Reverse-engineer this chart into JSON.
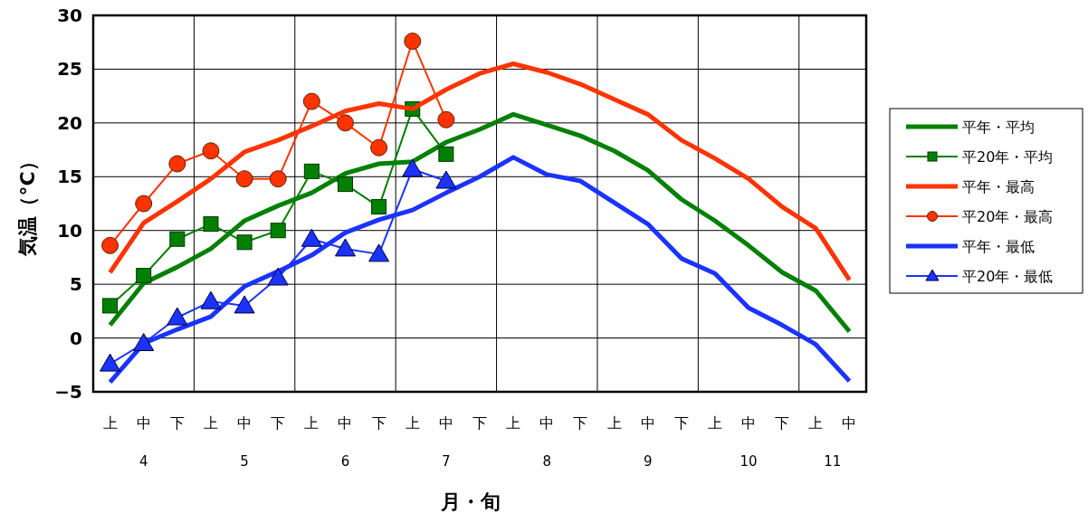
{
  "chart_data": {
    "type": "line",
    "xlabel": "月・旬",
    "ylabel": "気温（°C）",
    "categories": [
      "上",
      "中",
      "下",
      "上",
      "中",
      "下",
      "上",
      "中",
      "下",
      "上",
      "中",
      "下",
      "上",
      "中",
      "下",
      "上",
      "中",
      "下",
      "上",
      "中",
      "下",
      "上",
      "中"
    ],
    "annotations": [
      "4",
      "5",
      "6",
      "7",
      "8",
      "9",
      "10",
      "11"
    ],
    "ylim": [
      -5,
      30
    ],
    "yticks": [
      {
        "value": -5,
        "label": "−5"
      },
      0,
      5,
      10,
      15,
      20,
      25,
      30
    ],
    "grid": true,
    "legend": "right",
    "series": [
      {
        "name": "平年・平均",
        "color": "#008000",
        "marker": "none",
        "values": [
          1.2,
          5.1,
          6.6,
          8.3,
          10.9,
          12.3,
          13.5,
          15.3,
          16.2,
          16.4,
          18.2,
          19.4,
          20.8,
          19.8,
          18.8,
          17.4,
          15.6,
          12.9,
          10.9,
          8.6,
          6.1,
          4.4,
          0.6
        ]
      },
      {
        "name": "平20年・平均",
        "color": "#008000",
        "marker": "square",
        "values": [
          3.0,
          5.8,
          9.2,
          10.6,
          8.9,
          10.0,
          15.5,
          14.3,
          12.2,
          21.3,
          17.1,
          null,
          null,
          null,
          null,
          null,
          null,
          null,
          null,
          null,
          null,
          null,
          null
        ]
      },
      {
        "name": "平年・最高",
        "color": "#ff3300",
        "marker": "none",
        "values": [
          6.1,
          10.7,
          12.7,
          14.8,
          17.3,
          18.4,
          19.7,
          21.1,
          21.8,
          21.3,
          23.1,
          24.6,
          25.5,
          24.7,
          23.6,
          22.2,
          20.8,
          18.4,
          16.7,
          14.8,
          12.2,
          10.2,
          5.4
        ]
      },
      {
        "name": "平20年・最高",
        "color": "#ff3300",
        "marker": "circle",
        "values": [
          8.6,
          12.5,
          16.2,
          17.4,
          14.8,
          14.8,
          22.0,
          20.0,
          17.7,
          27.6,
          20.3,
          null,
          null,
          null,
          null,
          null,
          null,
          null,
          null,
          null,
          null,
          null,
          null
        ]
      },
      {
        "name": "平年・最低",
        "color": "#1a33ff",
        "marker": "none",
        "values": [
          -4.1,
          -0.5,
          0.8,
          2.0,
          4.8,
          6.2,
          7.7,
          9.8,
          11.0,
          11.9,
          13.5,
          15.0,
          16.8,
          15.2,
          14.6,
          12.6,
          10.6,
          7.4,
          6.0,
          2.8,
          1.2,
          -0.6,
          -4.0
        ]
      },
      {
        "name": "平20年・最低",
        "color": "#1a33ff",
        "marker": "triangle",
        "values": [
          -2.4,
          -0.5,
          1.9,
          3.4,
          3.0,
          5.6,
          9.2,
          8.3,
          7.8,
          15.7,
          14.6,
          null,
          null,
          null,
          null,
          null,
          null,
          null,
          null,
          null,
          null,
          null,
          null
        ]
      }
    ]
  }
}
